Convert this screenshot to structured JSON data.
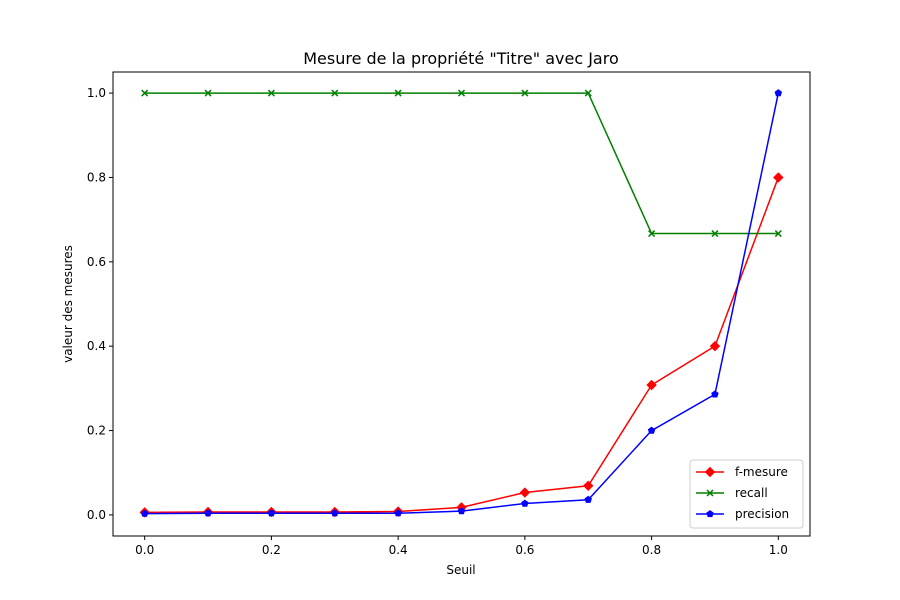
{
  "chart_data": {
    "type": "line",
    "title": "Mesure de la propriété \"Titre\" avec Jaro",
    "xlabel": "Seuil",
    "ylabel": "valeur des mesures",
    "x": [
      0.0,
      0.1,
      0.2,
      0.3,
      0.4,
      0.5,
      0.6,
      0.7,
      0.8,
      0.9,
      1.0
    ],
    "xlim": [
      -0.05,
      1.05
    ],
    "ylim": [
      -0.05,
      1.05
    ],
    "xticks": [
      "0.0",
      "0.2",
      "0.4",
      "0.6",
      "0.8",
      "1.0"
    ],
    "yticks": [
      "0.0",
      "0.2",
      "0.4",
      "0.6",
      "0.8",
      "1.0"
    ],
    "grid": false,
    "legend_position": "lower-right",
    "series": [
      {
        "name": "f-mesure",
        "color": "#ff0000",
        "marker": "diamond",
        "values": [
          0.006,
          0.007,
          0.007,
          0.007,
          0.008,
          0.018,
          0.053,
          0.069,
          0.308,
          0.4,
          0.8
        ]
      },
      {
        "name": "recall",
        "color": "#008000",
        "marker": "x",
        "values": [
          1.0,
          1.0,
          1.0,
          1.0,
          1.0,
          1.0,
          1.0,
          1.0,
          0.667,
          0.667,
          0.667
        ]
      },
      {
        "name": "precision",
        "color": "#0000ff",
        "marker": "pentagon",
        "values": [
          0.003,
          0.004,
          0.004,
          0.004,
          0.004,
          0.009,
          0.027,
          0.036,
          0.2,
          0.286,
          1.0
        ]
      }
    ]
  }
}
